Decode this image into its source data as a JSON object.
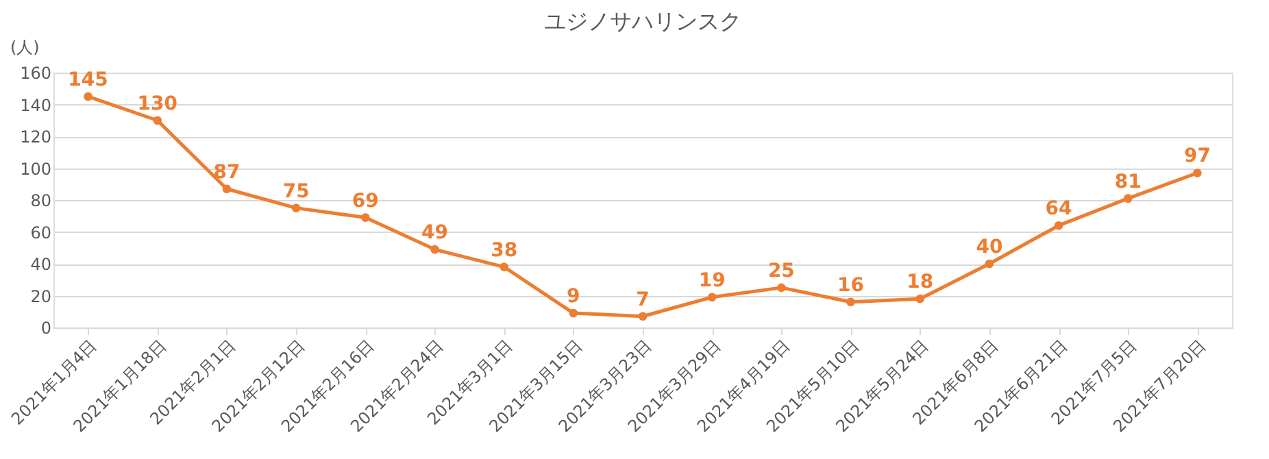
{
  "chart_data": {
    "type": "line",
    "title": "ユジノサハリンスク",
    "ylabel": "(人)",
    "categories": [
      "2021年1月4日",
      "2021年1月18日",
      "2021年2月1日",
      "2021年2月12日",
      "2021年2月16日",
      "2021年2月24日",
      "2021年3月1日",
      "2021年3月15日",
      "2021年3月23日",
      "2021年3月29日",
      "2021年4月19日",
      "2021年5月10日",
      "2021年5月24日",
      "2021年6月8日",
      "2021年6月21日",
      "2021年7月5日",
      "2021年7月20日"
    ],
    "series": [
      {
        "color": "#ed7d31",
        "values": [
          145,
          130,
          87,
          75,
          69,
          49,
          38,
          9,
          7,
          19,
          25,
          16,
          18,
          40,
          64,
          81,
          97
        ]
      }
    ],
    "ylim": [
      0,
      160
    ],
    "yticks": [
      0,
      20,
      40,
      60,
      80,
      100,
      120,
      140,
      160
    ],
    "grid": "y",
    "marker": "circle",
    "data_labels": true
  }
}
